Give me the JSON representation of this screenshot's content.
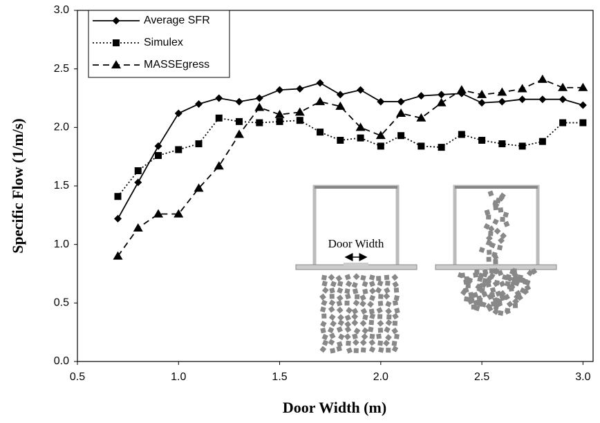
{
  "chart_data": {
    "type": "line",
    "x_label": "Door Width (m)",
    "y_label": "Specific Flow (1/m/s)",
    "x": [
      0.7,
      0.8,
      0.9,
      1.0,
      1.1,
      1.2,
      1.3,
      1.4,
      1.5,
      1.6,
      1.7,
      1.8,
      1.9,
      2.0,
      2.1,
      2.2,
      2.3,
      2.4,
      2.5,
      2.6,
      2.7,
      2.8,
      2.9,
      3.0
    ],
    "series": [
      {
        "name": "Average SFR",
        "color": "#000000",
        "marker": "diamond",
        "dash": "solid",
        "values": [
          1.22,
          1.53,
          1.84,
          2.12,
          2.2,
          2.25,
          2.22,
          2.25,
          2.32,
          2.33,
          2.38,
          2.28,
          2.32,
          2.22,
          2.22,
          2.27,
          2.28,
          2.29,
          2.21,
          2.22,
          2.24,
          2.24,
          2.24,
          2.19
        ]
      },
      {
        "name": "Simulex",
        "color": "#000000",
        "marker": "square",
        "dash": "dotted",
        "values": [
          1.41,
          1.63,
          1.76,
          1.81,
          1.86,
          2.08,
          2.05,
          2.04,
          2.05,
          2.06,
          1.96,
          1.89,
          1.91,
          1.84,
          1.93,
          1.84,
          1.83,
          1.94,
          1.89,
          1.86,
          1.84,
          1.88,
          2.04,
          2.04
        ]
      },
      {
        "name": "MASSEgress",
        "color": "#000000",
        "marker": "triangle",
        "dash": "dashed",
        "values": [
          0.9,
          1.14,
          1.26,
          1.26,
          1.48,
          1.67,
          1.94,
          2.17,
          2.11,
          2.13,
          2.22,
          2.18,
          2.0,
          1.93,
          2.12,
          2.08,
          2.21,
          2.32,
          2.28,
          2.3,
          2.33,
          2.41,
          2.34,
          2.34
        ]
      }
    ],
    "xlim": [
      0.5,
      3.05
    ],
    "ylim": [
      0,
      3
    ],
    "xticks": [
      0.5,
      {
        "value": 1,
        "label": "1.0"
      },
      1.5,
      {
        "value": 2,
        "label": "2.0"
      },
      2.5,
      {
        "value": 3,
        "label": "3.0"
      }
    ],
    "yticks": [
      {
        "value": 0,
        "label": "0.0"
      },
      0.5,
      {
        "value": 1,
        "label": "1.0"
      },
      1.5,
      {
        "value": 2,
        "label": "2.0"
      },
      2.5,
      {
        "value": 3,
        "label": "3.0"
      }
    ],
    "grid": false,
    "legend": "upper-left",
    "inset_label": "Door Width"
  }
}
